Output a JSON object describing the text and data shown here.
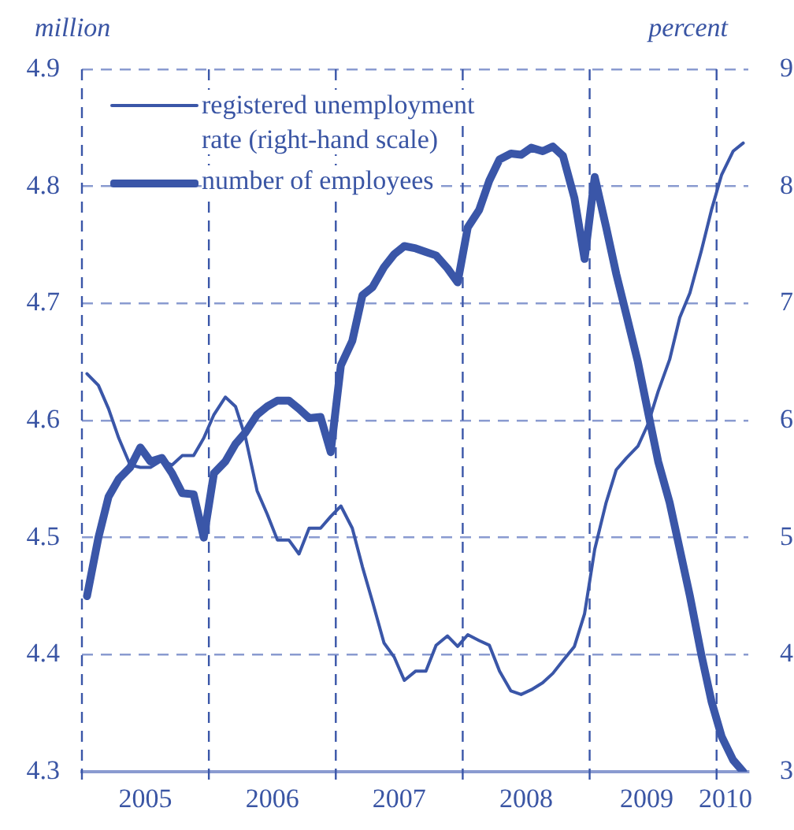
{
  "chart_data": {
    "type": "line",
    "ylabel": "million",
    "y2label": "percent",
    "x": [
      2005.04,
      2005.13,
      2005.21,
      2005.29,
      2005.38,
      2005.46,
      2005.54,
      2005.63,
      2005.71,
      2005.79,
      2005.88,
      2005.96,
      2006.04,
      2006.13,
      2006.21,
      2006.29,
      2006.38,
      2006.46,
      2006.54,
      2006.63,
      2006.71,
      2006.79,
      2006.88,
      2006.96,
      2007.04,
      2007.13,
      2007.21,
      2007.29,
      2007.38,
      2007.46,
      2007.54,
      2007.63,
      2007.71,
      2007.79,
      2007.88,
      2007.96,
      2008.04,
      2008.13,
      2008.21,
      2008.29,
      2008.38,
      2008.46,
      2008.54,
      2008.63,
      2008.71,
      2008.79,
      2008.88,
      2008.96,
      2009.04,
      2009.13,
      2009.21,
      2009.29,
      2009.38,
      2009.46,
      2009.54,
      2009.63,
      2009.71,
      2009.79,
      2009.88,
      2009.96,
      2010.04,
      2010.13,
      2010.21
    ],
    "series": [
      {
        "name": "registered unemployment rate (right-hand scale)",
        "color": "#3a56a8",
        "axis": "y2",
        "values": [
          6.4,
          6.3,
          6.1,
          5.85,
          5.62,
          5.6,
          5.6,
          5.66,
          5.62,
          5.7,
          5.7,
          5.85,
          6.05,
          6.2,
          6.12,
          5.85,
          5.4,
          5.2,
          4.98,
          4.98,
          4.86,
          5.08,
          5.08,
          5.18,
          5.27,
          5.08,
          4.75,
          4.45,
          4.1,
          3.98,
          3.78,
          3.86,
          3.86,
          4.08,
          4.16,
          4.07,
          4.17,
          4.12,
          4.08,
          3.86,
          3.69,
          3.66,
          3.7,
          3.76,
          3.84,
          3.95,
          4.07,
          4.35,
          4.9,
          5.3,
          5.58,
          5.68,
          5.78,
          5.97,
          6.25,
          6.52,
          6.88,
          7.09,
          7.45,
          7.8,
          8.1,
          8.3,
          8.37
        ]
      },
      {
        "name": "number of employees",
        "color": "#3a56a8",
        "axis": "y",
        "values": [
          4.45,
          4.5,
          4.535,
          4.55,
          4.56,
          4.577,
          4.565,
          4.568,
          4.555,
          4.538,
          4.537,
          4.5,
          4.555,
          4.565,
          4.58,
          4.59,
          4.605,
          4.612,
          4.617,
          4.617,
          4.61,
          4.602,
          4.603,
          4.573,
          4.647,
          4.668,
          4.707,
          4.714,
          4.731,
          4.742,
          4.749,
          4.747,
          4.744,
          4.741,
          4.73,
          4.718,
          4.765,
          4.78,
          4.805,
          4.823,
          4.828,
          4.827,
          4.833,
          4.83,
          4.834,
          4.826,
          4.79,
          4.738,
          4.808,
          4.765,
          4.725,
          4.69,
          4.65,
          4.607,
          4.565,
          4.53,
          4.49,
          4.45,
          4.4,
          4.36,
          4.33,
          4.31,
          4.3
        ]
      }
    ],
    "xlim": [
      2005,
      2010.25
    ],
    "xticks": [
      {
        "value": 2005.5,
        "label": "2005"
      },
      {
        "value": 2006.5,
        "label": "2006"
      },
      {
        "value": 2007.5,
        "label": "2007"
      },
      {
        "value": 2008.5,
        "label": "2008"
      },
      {
        "value": 2009.45,
        "label": "2009"
      },
      {
        "value": 2010.07,
        "label": "2010"
      }
    ],
    "ylim": [
      4.3,
      4.9
    ],
    "yticks": [
      4.3,
      4.4,
      4.5,
      4.6,
      4.7,
      4.8,
      4.9
    ],
    "y2lim": [
      3,
      9
    ],
    "y2ticks": [
      3,
      4,
      5,
      6,
      7,
      8,
      9
    ],
    "ref_lines": [
      {
        "axis": "x",
        "value": 2005,
        "line_style": "dashed"
      },
      {
        "axis": "x",
        "value": 2006,
        "line_style": "dashed"
      },
      {
        "axis": "x",
        "value": 2007,
        "line_style": "dashed"
      },
      {
        "axis": "x",
        "value": 2008,
        "line_style": "dashed"
      },
      {
        "axis": "x",
        "value": 2009,
        "line_style": "dashed"
      },
      {
        "axis": "x",
        "value": 2010,
        "line_style": "dashed"
      }
    ],
    "grid": "y",
    "legend": "top left",
    "marker": "none",
    "line_style": "solid"
  }
}
